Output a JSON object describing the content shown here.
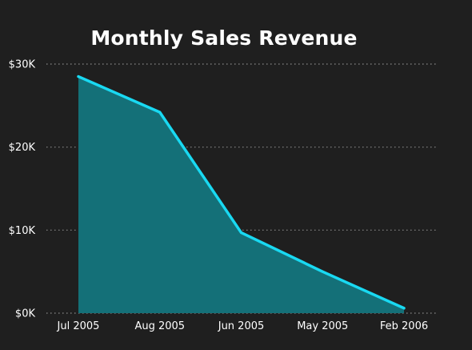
{
  "chart_data": {
    "type": "area",
    "title": "Monthly Sales Revenue",
    "xlabel": "",
    "ylabel": "",
    "categories": [
      "Jul 2005",
      "Aug 2005",
      "Jun 2005",
      "May 2005",
      "Feb 2006"
    ],
    "series": [
      {
        "values": [
          28500,
          24200,
          9700,
          5000,
          600
        ]
      }
    ],
    "ylim": [
      0,
      30000
    ],
    "y_ticks": [
      0,
      10000,
      20000,
      30000
    ],
    "y_tick_labels": [
      "$0K",
      "$10K",
      "$20K",
      "$30K"
    ],
    "grid": true,
    "legend": "none",
    "colors": {
      "background": "#1f1f1f",
      "line": "#19d9f2",
      "fill": "#147078",
      "grid": "#8a8a8a",
      "text": "#ffffff"
    }
  }
}
